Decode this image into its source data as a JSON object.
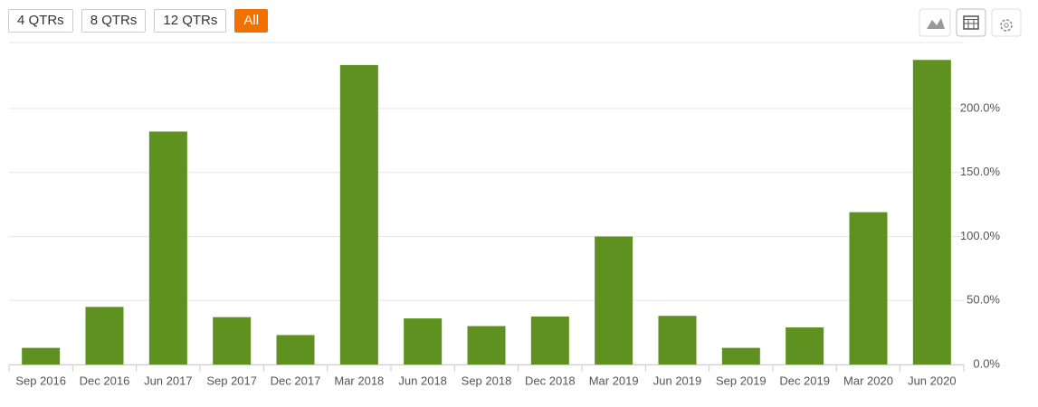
{
  "range_buttons": [
    "4 QTRs",
    "8 QTRs",
    "12 QTRs",
    "All"
  ],
  "chart_data": {
    "type": "bar",
    "categories": [
      "Sep 2016",
      "Dec 2016",
      "Jun 2017",
      "Sep 2017",
      "Dec 2017",
      "Mar 2018",
      "Jun 2018",
      "Sep 2018",
      "Dec 2018",
      "Mar 2019",
      "Jun 2019",
      "Sep 2019",
      "Dec 2019",
      "Mar 2020",
      "Jun 2020"
    ],
    "values": [
      13,
      45,
      182,
      37,
      23,
      234,
      36,
      30,
      37.5,
      100,
      38,
      13,
      29,
      119,
      238
    ],
    "color": "#5e911f",
    "ylim": [
      0,
      250
    ],
    "yticks": [
      {
        "value": 0,
        "label": "0.0%"
      },
      {
        "value": 50,
        "label": "50.0%"
      },
      {
        "value": 100,
        "label": "100.0%"
      },
      {
        "value": 150,
        "label": "150.0%"
      },
      {
        "value": 200,
        "label": "200.0%"
      }
    ],
    "grid": true
  }
}
